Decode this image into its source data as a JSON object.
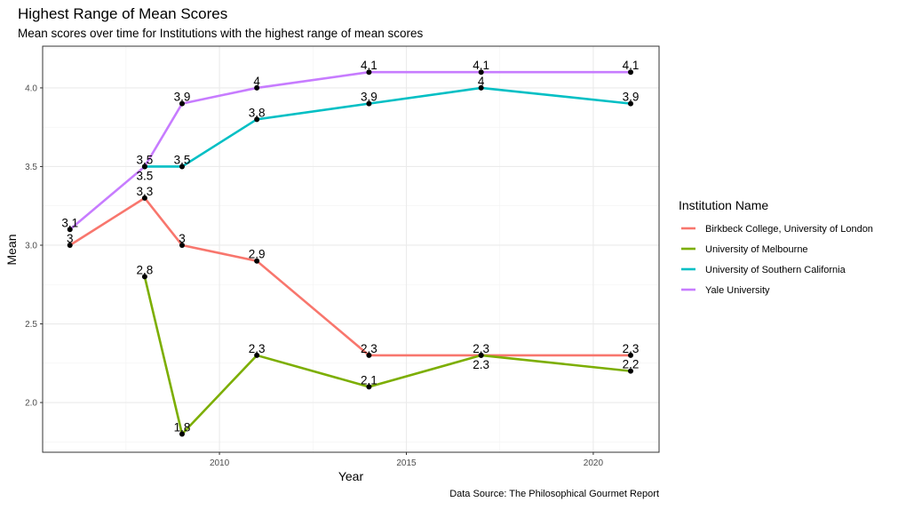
{
  "chart_data": {
    "type": "line",
    "title": "Highest Range of Mean Scores",
    "subtitle": "Mean scores over time for Institutions with the highest range of mean scores",
    "xlabel": "Year",
    "ylabel": "Mean",
    "caption": "Data Source: The Philosophical Gourmet Report",
    "xlim": [
      2005.27,
      2021.76
    ],
    "ylim": [
      1.684,
      4.265
    ],
    "xticks": [
      2010,
      2015,
      2020
    ],
    "xtick_labels": [
      "2010",
      "2015",
      "2020"
    ],
    "yticks": [
      2.0,
      2.5,
      3.0,
      3.5,
      4.0
    ],
    "ytick_labels": [
      "2.0",
      "2.5",
      "3.0",
      "3.5",
      "4.0"
    ],
    "grid": true,
    "legend": {
      "title": "Institution Name",
      "placement": "right"
    },
    "series": [
      {
        "name": "Birkbeck College, University of London",
        "color": "#F8766D",
        "x": [
          2006,
          2008,
          2009,
          2011,
          2014,
          2017,
          2021
        ],
        "y": [
          3.0,
          3.3,
          3.0,
          2.9,
          2.3,
          2.3,
          2.3
        ],
        "labels": [
          "3",
          "3.3",
          "3",
          "2.9",
          "2.3",
          "2.3",
          "2.3"
        ]
      },
      {
        "name": "University of Melbourne",
        "color": "#7CAE00",
        "x": [
          2008,
          2009,
          2011,
          2014,
          2017,
          2021
        ],
        "y": [
          2.8,
          1.8,
          2.3,
          2.1,
          2.3,
          2.2
        ],
        "labels": [
          "2.8",
          "1.8",
          "2.3",
          "2.1",
          "2.3",
          "2.2"
        ]
      },
      {
        "name": "University of Southern California",
        "color": "#00BFC4",
        "x": [
          2008,
          2009,
          2011,
          2014,
          2017,
          2021
        ],
        "y": [
          3.5,
          3.5,
          3.8,
          3.9,
          4.0,
          3.9
        ],
        "labels": [
          "3.5",
          "3.5",
          "3.8",
          "3.9",
          "4",
          "3.9"
        ]
      },
      {
        "name": "Yale University",
        "color": "#C77CFF",
        "x": [
          2006,
          2008,
          2009,
          2011,
          2014,
          2017,
          2021
        ],
        "y": [
          3.1,
          3.5,
          3.9,
          4.0,
          4.1,
          4.1,
          4.1
        ],
        "labels": [
          "3.1",
          "3.5",
          "3.9",
          "4",
          "4.1",
          "4.1",
          "4.1"
        ]
      }
    ]
  }
}
